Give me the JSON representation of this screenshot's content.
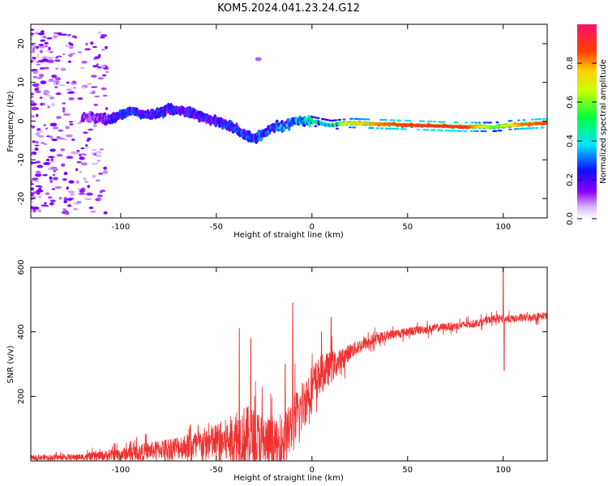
{
  "chart_data": [
    {
      "type": "heatmap",
      "title": "KOM5.2024.041.23.24.G12",
      "xlabel": "Height of straight line (km)",
      "ylabel": "Frequency (Hz)",
      "xlim": [
        -147,
        123
      ],
      "ylim": [
        -25,
        25
      ],
      "x_ticks": [
        -100,
        -50,
        0,
        50,
        100
      ],
      "y_ticks": [
        -20,
        -10,
        0,
        10,
        20
      ],
      "colorbar": {
        "label": "Normalized spectral amplitude",
        "range": [
          0,
          1
        ],
        "ticks": [
          0.0,
          0.2,
          0.4,
          0.6,
          0.8
        ]
      },
      "ridge_frequency": [
        {
          "x": -115,
          "y": 1.0
        },
        {
          "x": -105,
          "y": 0.5
        },
        {
          "x": -95,
          "y": 2.5
        },
        {
          "x": -85,
          "y": 1.5
        },
        {
          "x": -75,
          "y": 3.0
        },
        {
          "x": -65,
          "y": 2.5
        },
        {
          "x": -57,
          "y": 1.0
        },
        {
          "x": -50,
          "y": 0.0
        },
        {
          "x": -42,
          "y": -1.5
        },
        {
          "x": -35,
          "y": -3.5
        },
        {
          "x": -30,
          "y": -4.5
        },
        {
          "x": -25,
          "y": -3.0
        },
        {
          "x": -20,
          "y": -1.5
        },
        {
          "x": -15,
          "y": -1.5
        },
        {
          "x": -10,
          "y": 0.0
        },
        {
          "x": 0,
          "y": 0.0
        },
        {
          "x": 10,
          "y": -1.0
        },
        {
          "x": 20,
          "y": -0.5
        },
        {
          "x": 50,
          "y": -1.0
        },
        {
          "x": 80,
          "y": -1.5
        },
        {
          "x": 95,
          "y": -1.5
        },
        {
          "x": 105,
          "y": -1.0
        },
        {
          "x": 123,
          "y": -0.5
        }
      ],
      "ridge_amplitude": [
        {
          "x": -115,
          "y": 0.15
        },
        {
          "x": -95,
          "y": 0.28
        },
        {
          "x": -75,
          "y": 0.25
        },
        {
          "x": -55,
          "y": 0.25
        },
        {
          "x": -35,
          "y": 0.3
        },
        {
          "x": -20,
          "y": 0.3
        },
        {
          "x": -10,
          "y": 0.35
        },
        {
          "x": 0,
          "y": 0.45
        },
        {
          "x": 10,
          "y": 0.5
        },
        {
          "x": 20,
          "y": 0.7
        },
        {
          "x": 40,
          "y": 0.82
        },
        {
          "x": 60,
          "y": 0.9
        },
        {
          "x": 80,
          "y": 0.88
        },
        {
          "x": 95,
          "y": 0.55
        },
        {
          "x": 110,
          "y": 0.8
        },
        {
          "x": 123,
          "y": 0.85
        }
      ]
    },
    {
      "type": "line",
      "xlabel": "Height of straight line (km)",
      "ylabel": "SNR (v/v)",
      "xlim": [
        -147,
        123
      ],
      "ylim": [
        0,
        600
      ],
      "x_ticks": [
        -100,
        -50,
        0,
        50,
        100
      ],
      "y_ticks": [
        200,
        400,
        600
      ],
      "color": "#f03030",
      "baseline": [
        {
          "x": -147,
          "y": 10
        },
        {
          "x": -120,
          "y": 12
        },
        {
          "x": -100,
          "y": 20
        },
        {
          "x": -80,
          "y": 35
        },
        {
          "x": -60,
          "y": 50
        },
        {
          "x": -45,
          "y": 60
        },
        {
          "x": -35,
          "y": 75
        },
        {
          "x": -25,
          "y": 60
        },
        {
          "x": -18,
          "y": 40
        },
        {
          "x": -12,
          "y": 90
        },
        {
          "x": -8,
          "y": 130
        },
        {
          "x": -5,
          "y": 170
        },
        {
          "x": 0,
          "y": 230
        },
        {
          "x": 5,
          "y": 270
        },
        {
          "x": 10,
          "y": 290
        },
        {
          "x": 15,
          "y": 310
        },
        {
          "x": 20,
          "y": 340
        },
        {
          "x": 30,
          "y": 370
        },
        {
          "x": 40,
          "y": 390
        },
        {
          "x": 55,
          "y": 405
        },
        {
          "x": 70,
          "y": 415
        },
        {
          "x": 85,
          "y": 425
        },
        {
          "x": 95,
          "y": 440
        },
        {
          "x": 105,
          "y": 440
        },
        {
          "x": 123,
          "y": 450
        }
      ],
      "noise": [
        {
          "x": -147,
          "y": 8
        },
        {
          "x": -120,
          "y": 10
        },
        {
          "x": -100,
          "y": 20
        },
        {
          "x": -80,
          "y": 30
        },
        {
          "x": -60,
          "y": 45
        },
        {
          "x": -45,
          "y": 70
        },
        {
          "x": -35,
          "y": 100
        },
        {
          "x": -25,
          "y": 90
        },
        {
          "x": -15,
          "y": 80
        },
        {
          "x": -8,
          "y": 90
        },
        {
          "x": 0,
          "y": 70
        },
        {
          "x": 10,
          "y": 50
        },
        {
          "x": 20,
          "y": 25
        },
        {
          "x": 40,
          "y": 15
        },
        {
          "x": 80,
          "y": 12
        },
        {
          "x": 123,
          "y": 12
        }
      ],
      "spikes": [
        {
          "x": -38,
          "y": 410
        },
        {
          "x": -32,
          "y": 380
        },
        {
          "x": -10,
          "y": 490
        },
        {
          "x": -14,
          "y": 300
        },
        {
          "x": 5,
          "y": 400
        },
        {
          "x": 10,
          "y": 445
        },
        {
          "x": 100,
          "y": 600
        },
        {
          "x": 100.5,
          "y": 280
        }
      ]
    }
  ]
}
